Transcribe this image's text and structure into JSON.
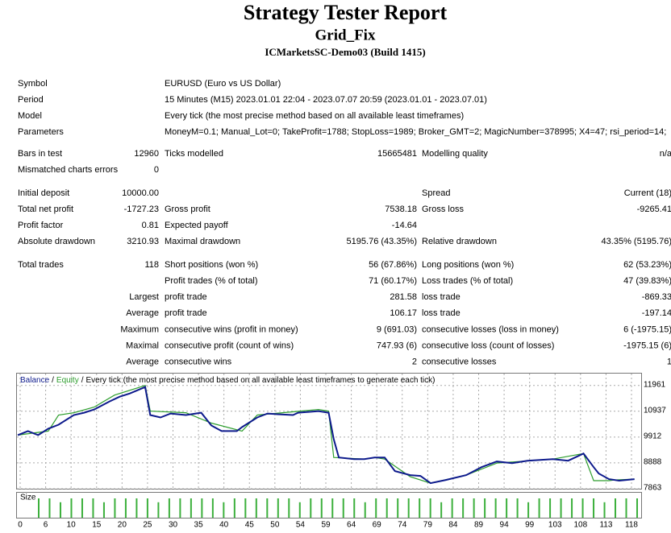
{
  "header": {
    "title": "Strategy Tester Report",
    "subtitle": "Grid_Fix",
    "server": "ICMarketsSC-Demo03 (Build 1415)"
  },
  "report": {
    "sections": [
      [
        [
          "Symbol",
          "EURUSD (Euro vs US Dollar)"
        ],
        [
          "Period",
          "15 Minutes (M15) 2023.01.01 22:04 - 2023.07.07 20:59 (2023.01.01 - 2023.07.01)"
        ],
        [
          "Model",
          "Every tick (the most precise method based on all available least timeframes)"
        ],
        [
          "Parameters",
          "MoneyM=0.1; Manual_Lot=0; TakeProfit=1788; StopLoss=1989; Broker_GMT=2; MagicNumber=378995; X4=47; rsi_period=14;"
        ]
      ],
      [
        [
          "Bars in test",
          "12960",
          "Ticks modelled",
          "15665481",
          "Modelling quality",
          "n/a"
        ],
        [
          "Mismatched charts errors",
          "0",
          null,
          null,
          null,
          null
        ]
      ],
      [
        [
          "Initial deposit",
          "10000.00",
          null,
          null,
          "Spread",
          "Current (18)"
        ],
        [
          "Total net profit",
          "-1727.23",
          "Gross profit",
          "7538.18",
          "Gross loss",
          "-9265.41"
        ],
        [
          "Profit factor",
          "0.81",
          "Expected payoff",
          "-14.64",
          null,
          null
        ],
        [
          "Absolute drawdown",
          "3210.93",
          "Maximal drawdown",
          "5195.76 (43.35%)",
          "Relative drawdown",
          "43.35% (5195.76)"
        ]
      ],
      [
        [
          "Total trades",
          "118",
          "Short positions (won %)",
          "56 (67.86%)",
          "Long positions (won %)",
          "62 (53.23%)"
        ],
        [
          null,
          null,
          "Profit trades (% of total)",
          "71 (60.17%)",
          "Loss trades (% of total)",
          "47 (39.83%)"
        ],
        [
          null,
          "Largest",
          "profit trade",
          "281.58",
          "loss trade",
          "-869.33"
        ],
        [
          null,
          "Average",
          "profit trade",
          "106.17",
          "loss trade",
          "-197.14"
        ],
        [
          null,
          "Maximum",
          "consecutive wins (profit in money)",
          "9 (691.03)",
          "consecutive losses (loss in money)",
          "6 (-1975.15)"
        ],
        [
          null,
          "Maximal",
          "consecutive profit (count of wins)",
          "747.93 (6)",
          "consecutive loss (count of losses)",
          "-1975.15 (6)"
        ],
        [
          null,
          "Average",
          "consecutive wins",
          "2",
          "consecutive losses",
          "1"
        ]
      ]
    ]
  },
  "chart_data": {
    "type": "line",
    "legend_separator": "/",
    "caption": "Every tick (the most precise method based on all available least timeframes to generate each tick)",
    "xlim": [
      0,
      122
    ],
    "ylim": [
      7863,
      12465
    ],
    "yticks": [
      7863,
      8888,
      9912,
      10937,
      11961
    ],
    "grid": true,
    "x_tick_labels": [
      "0",
      "6",
      "10",
      "15",
      "20",
      "25",
      "30",
      "35",
      "40",
      "45",
      "50",
      "54",
      "59",
      "64",
      "69",
      "74",
      "79",
      "84",
      "89",
      "94",
      "99",
      "103",
      "108",
      "113",
      "118"
    ],
    "series": [
      {
        "name": "Balance",
        "color": "#0d1a8c",
        "x": [
          0,
          2,
          4,
          6,
          8,
          11,
          13,
          15,
          18,
          20,
          22,
          25,
          26,
          28,
          30,
          33,
          36,
          38,
          40,
          43,
          44,
          47,
          49,
          51,
          54,
          55,
          59,
          61,
          62,
          63,
          66,
          68,
          70,
          72,
          74,
          77,
          79,
          81,
          84,
          88,
          91,
          94,
          97,
          100,
          105,
          108,
          111,
          113,
          114,
          116,
          118,
          121
        ],
        "values": [
          9991,
          10150,
          9991,
          10246,
          10405,
          10786,
          10881,
          11008,
          11326,
          11517,
          11644,
          11898,
          10786,
          10691,
          10849,
          10786,
          10881,
          10373,
          10150,
          10150,
          10309,
          10691,
          10849,
          10818,
          10786,
          10881,
          10945,
          10881,
          9833,
          9102,
          9038,
          9038,
          9102,
          9102,
          8562,
          8403,
          8371,
          8085,
          8212,
          8403,
          8721,
          8943,
          8880,
          8975,
          9038,
          8975,
          9261,
          8721,
          8467,
          8244,
          8181,
          8244
        ]
      },
      {
        "name": "Equity",
        "color": "#2e9e2e",
        "x": [
          0,
          6,
          8,
          11,
          15,
          19,
          25,
          26,
          33,
          38,
          44,
          47,
          59,
          61,
          62,
          68,
          70,
          72,
          77,
          81,
          88,
          94,
          105,
          111,
          113,
          116,
          117,
          121
        ],
        "values": [
          9991,
          10150,
          10786,
          10881,
          11104,
          11580,
          11961,
          10945,
          10881,
          10468,
          10150,
          10786,
          11008,
          10945,
          9102,
          9038,
          9102,
          9038,
          8340,
          8085,
          8403,
          8880,
          9038,
          9261,
          8181,
          8181,
          8212,
          8244
        ]
      }
    ],
    "size_label": "Size",
    "size_color": "#3cb03c",
    "size_values": [
      1,
      1,
      0.8,
      1,
      1,
      1,
      0.8,
      1,
      1,
      1,
      1,
      0.8,
      1,
      1,
      1,
      1,
      1,
      0.8,
      1,
      1,
      1,
      1,
      1,
      1,
      0.8,
      1,
      1,
      1,
      1,
      1,
      0.8,
      1,
      1,
      1,
      1,
      1,
      1,
      0.8,
      1,
      1,
      1,
      1,
      1,
      1,
      1,
      0.8,
      1,
      1,
      1,
      1,
      1,
      1,
      0.8,
      1,
      1,
      1
    ]
  }
}
